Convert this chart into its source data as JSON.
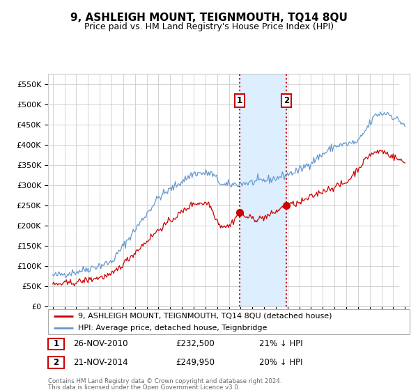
{
  "title": "9, ASHLEIGH MOUNT, TEIGNMOUTH, TQ14 8QU",
  "subtitle": "Price paid vs. HM Land Registry's House Price Index (HPI)",
  "title_fontsize": 11,
  "subtitle_fontsize": 9,
  "ylim": [
    0,
    575000
  ],
  "yticks": [
    0,
    50000,
    100000,
    150000,
    200000,
    250000,
    300000,
    350000,
    400000,
    450000,
    500000,
    550000
  ],
  "sale1_date_num": 2010.9,
  "sale1_price": 232500,
  "sale2_date_num": 2014.9,
  "sale2_price": 249950,
  "sale1_label": "1",
  "sale2_label": "2",
  "red_line_color": "#cc0000",
  "blue_line_color": "#6699cc",
  "shade_color": "#ddeeff",
  "grid_color": "#cccccc",
  "annotation_box_color": "#cc0000",
  "legend1": "9, ASHLEIGH MOUNT, TEIGNMOUTH, TQ14 8QU (detached house)",
  "legend2": "HPI: Average price, detached house, Teignbridge",
  "footer1": "Contains HM Land Registry data © Crown copyright and database right 2024.",
  "footer2": "This data is licensed under the Open Government Licence v3.0.",
  "table_row1": [
    "1",
    "26-NOV-2010",
    "£232,500",
    "21% ↓ HPI"
  ],
  "table_row2": [
    "2",
    "21-NOV-2014",
    "£249,950",
    "20% ↓ HPI"
  ],
  "xlim_left": 1994.6,
  "xlim_right": 2025.4
}
